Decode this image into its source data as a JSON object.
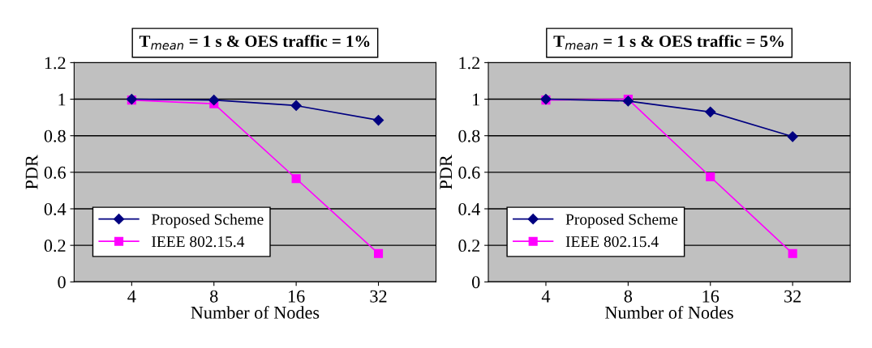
{
  "chart_data": [
    {
      "type": "line",
      "title": "T$_{mean}$ = 1 s & OES traffic = 1%",
      "xlabel": "Number of Nodes",
      "ylabel": "PDR",
      "categories": [
        "4",
        "8",
        "16",
        "32"
      ],
      "ylim": [
        0,
        1.2
      ],
      "yticks": [
        0,
        0.2,
        0.4,
        0.6,
        0.8,
        1,
        1.2
      ],
      "grid": "y",
      "legend": "bottom left",
      "series": [
        {
          "name": "Proposed Scheme",
          "color": "#000080",
          "marker": "diamond",
          "values": [
            1.0,
            0.995,
            0.965,
            0.885
          ]
        },
        {
          "name": "IEEE 802.15.4",
          "color": "#ff00ff",
          "marker": "square",
          "values": [
            0.995,
            0.975,
            0.565,
            0.155
          ]
        }
      ]
    },
    {
      "type": "line",
      "title": "T$_{mean}$ = 1 s & OES traffic = 5%",
      "xlabel": "Number of Nodes",
      "ylabel": "PDR",
      "categories": [
        "4",
        "8",
        "16",
        "32"
      ],
      "ylim": [
        0,
        1.2
      ],
      "yticks": [
        0,
        0.2,
        0.4,
        0.6,
        0.8,
        1,
        1.2
      ],
      "grid": "y",
      "legend": "bottom left",
      "series": [
        {
          "name": "Proposed Scheme",
          "color": "#000080",
          "marker": "diamond",
          "values": [
            1.0,
            0.99,
            0.93,
            0.795
          ]
        },
        {
          "name": "IEEE 802.15.4",
          "color": "#ff00ff",
          "marker": "square",
          "values": [
            0.995,
            1.0,
            0.575,
            0.155
          ]
        }
      ]
    }
  ]
}
